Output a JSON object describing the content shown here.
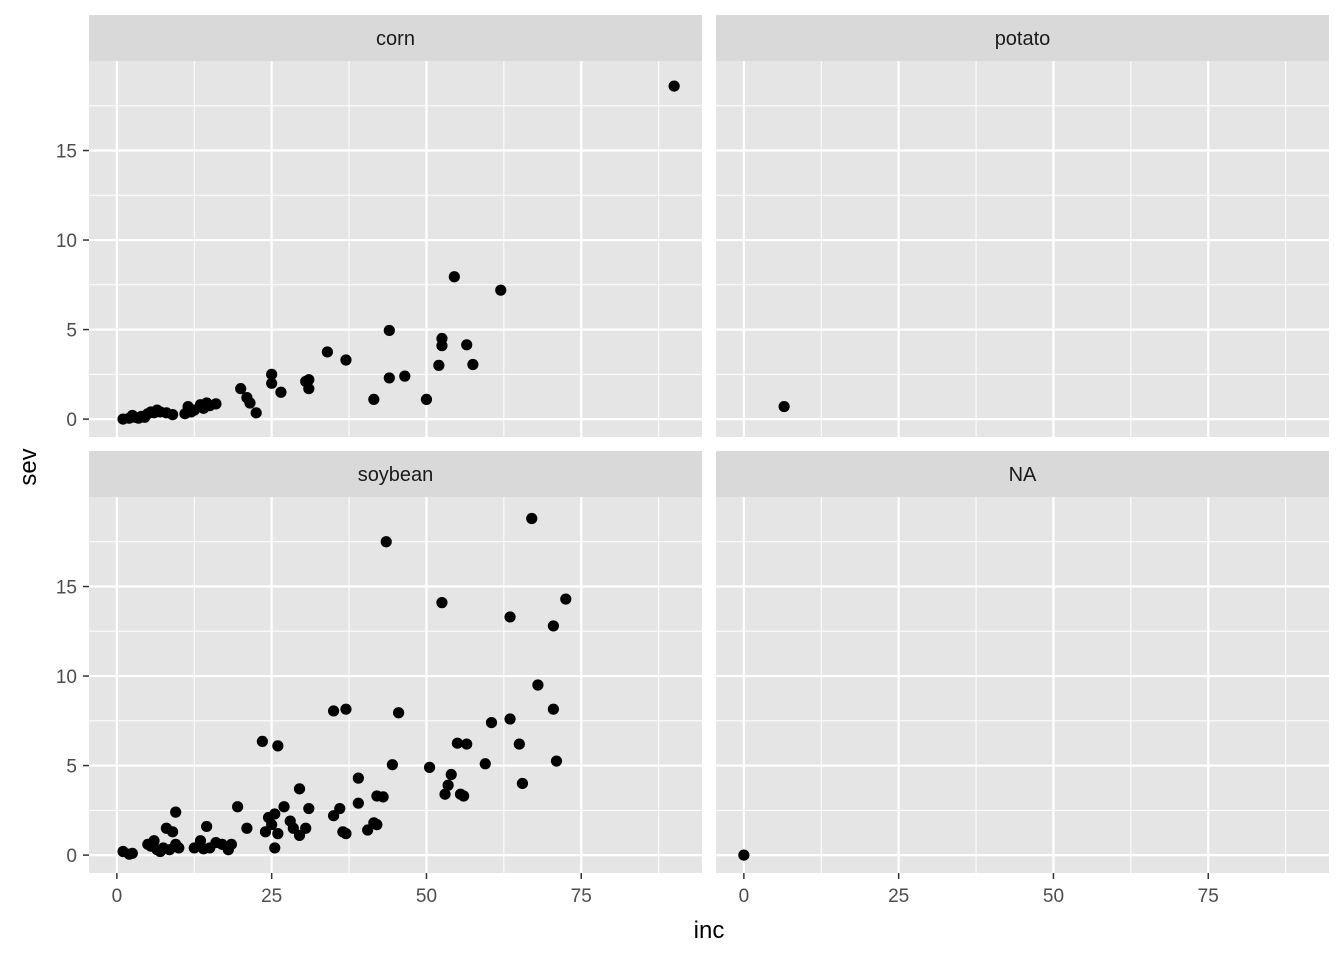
{
  "chart_data": {
    "type": "scatter",
    "facets": [
      "corn",
      "potato",
      "soybean",
      "NA"
    ],
    "xlabel": "inc",
    "ylabel": "sev",
    "xlim": [
      -4.5,
      94.5
    ],
    "ylim": [
      -1,
      20
    ],
    "x_ticks": [
      0,
      25,
      50,
      75
    ],
    "y_ticks": [
      0,
      5,
      10,
      15
    ],
    "grid": true,
    "colors": {
      "panel_bg": "#e5e5e5",
      "strip_bg": "#d9d9d9",
      "grid": "#ffffff",
      "point": "#000000"
    },
    "panels": [
      {
        "label": "corn",
        "points": [
          [
            1,
            0
          ],
          [
            2,
            0.05
          ],
          [
            2.5,
            0.2
          ],
          [
            3,
            0.1
          ],
          [
            3.5,
            0.05
          ],
          [
            4,
            0.15
          ],
          [
            4.5,
            0.1
          ],
          [
            5,
            0.3
          ],
          [
            5.5,
            0.4
          ],
          [
            6,
            0.35
          ],
          [
            6.5,
            0.5
          ],
          [
            7,
            0.4
          ],
          [
            8,
            0.35
          ],
          [
            9,
            0.25
          ],
          [
            11,
            0.3
          ],
          [
            11.5,
            0.7
          ],
          [
            12,
            0.4
          ],
          [
            12.5,
            0.5
          ],
          [
            13.5,
            0.8
          ],
          [
            14,
            0.6
          ],
          [
            14.5,
            0.9
          ],
          [
            15,
            0.75
          ],
          [
            16,
            0.85
          ],
          [
            20,
            1.7
          ],
          [
            21,
            1.2
          ],
          [
            21.5,
            0.9
          ],
          [
            22.5,
            0.35
          ],
          [
            25,
            2.0
          ],
          [
            25,
            2.5
          ],
          [
            26.5,
            1.5
          ],
          [
            30.5,
            2.1
          ],
          [
            31,
            1.7
          ],
          [
            31,
            2.2
          ],
          [
            34,
            3.75
          ],
          [
            37,
            3.3
          ],
          [
            41.5,
            1.1
          ],
          [
            44,
            2.3
          ],
          [
            44,
            4.95
          ],
          [
            46.5,
            2.4
          ],
          [
            50,
            1.1
          ],
          [
            52,
            3.0
          ],
          [
            52.5,
            4.5
          ],
          [
            52.5,
            4.1
          ],
          [
            54.5,
            7.95
          ],
          [
            56.5,
            4.15
          ],
          [
            57.5,
            3.05
          ],
          [
            62,
            7.2
          ],
          [
            90,
            18.6
          ]
        ]
      },
      {
        "label": "potato",
        "points": [
          [
            6.5,
            0.7
          ]
        ]
      },
      {
        "label": "soybean",
        "points": [
          [
            1,
            0.2
          ],
          [
            2,
            0.05
          ],
          [
            2.5,
            0.1
          ],
          [
            5,
            0.6
          ],
          [
            5.5,
            0.5
          ],
          [
            6,
            0.8
          ],
          [
            6.5,
            0.3
          ],
          [
            7,
            0.2
          ],
          [
            7.5,
            0.4
          ],
          [
            8,
            1.5
          ],
          [
            8.5,
            0.3
          ],
          [
            9,
            1.3
          ],
          [
            9.5,
            2.4
          ],
          [
            9.5,
            0.6
          ],
          [
            10,
            0.4
          ],
          [
            12.5,
            0.4
          ],
          [
            13.5,
            0.8
          ],
          [
            14,
            0.35
          ],
          [
            14.5,
            1.6
          ],
          [
            15,
            0.4
          ],
          [
            16,
            0.7
          ],
          [
            17,
            0.6
          ],
          [
            18,
            0.3
          ],
          [
            18.5,
            0.6
          ],
          [
            19.5,
            2.7
          ],
          [
            21,
            1.5
          ],
          [
            23.5,
            6.35
          ],
          [
            24,
            1.3
          ],
          [
            24.5,
            2.1
          ],
          [
            25,
            1.7
          ],
          [
            25.5,
            0.4
          ],
          [
            25.5,
            2.3
          ],
          [
            26,
            6.1
          ],
          [
            26,
            1.2
          ],
          [
            27,
            2.7
          ],
          [
            28,
            1.9
          ],
          [
            28.5,
            1.5
          ],
          [
            29.5,
            1.1
          ],
          [
            29.5,
            3.7
          ],
          [
            30.5,
            1.5
          ],
          [
            31,
            2.6
          ],
          [
            35,
            8.05
          ],
          [
            35,
            2.2
          ],
          [
            36,
            2.6
          ],
          [
            36.5,
            1.3
          ],
          [
            37,
            8.15
          ],
          [
            37,
            1.2
          ],
          [
            39,
            2.9
          ],
          [
            39,
            4.3
          ],
          [
            40.5,
            1.4
          ],
          [
            41.5,
            1.8
          ],
          [
            42,
            3.3
          ],
          [
            42,
            1.7
          ],
          [
            43,
            3.25
          ],
          [
            43.5,
            17.5
          ],
          [
            44.5,
            5.05
          ],
          [
            45.5,
            7.95
          ],
          [
            50.5,
            4.9
          ],
          [
            52.5,
            14.1
          ],
          [
            53,
            3.4
          ],
          [
            53.5,
            3.9
          ],
          [
            54,
            4.5
          ],
          [
            55,
            6.25
          ],
          [
            55.5,
            3.4
          ],
          [
            56,
            3.3
          ],
          [
            56.5,
            6.2
          ],
          [
            59.5,
            5.1
          ],
          [
            60.5,
            7.4
          ],
          [
            63.5,
            13.3
          ],
          [
            63.5,
            7.6
          ],
          [
            65,
            6.2
          ],
          [
            65.5,
            4.0
          ],
          [
            67,
            18.8
          ],
          [
            68,
            9.5
          ],
          [
            70.5,
            12.8
          ],
          [
            70.5,
            8.15
          ],
          [
            71,
            5.25
          ],
          [
            72.5,
            14.3
          ]
        ]
      },
      {
        "label": "NA",
        "points": [
          [
            0,
            0.0
          ]
        ]
      }
    ]
  }
}
